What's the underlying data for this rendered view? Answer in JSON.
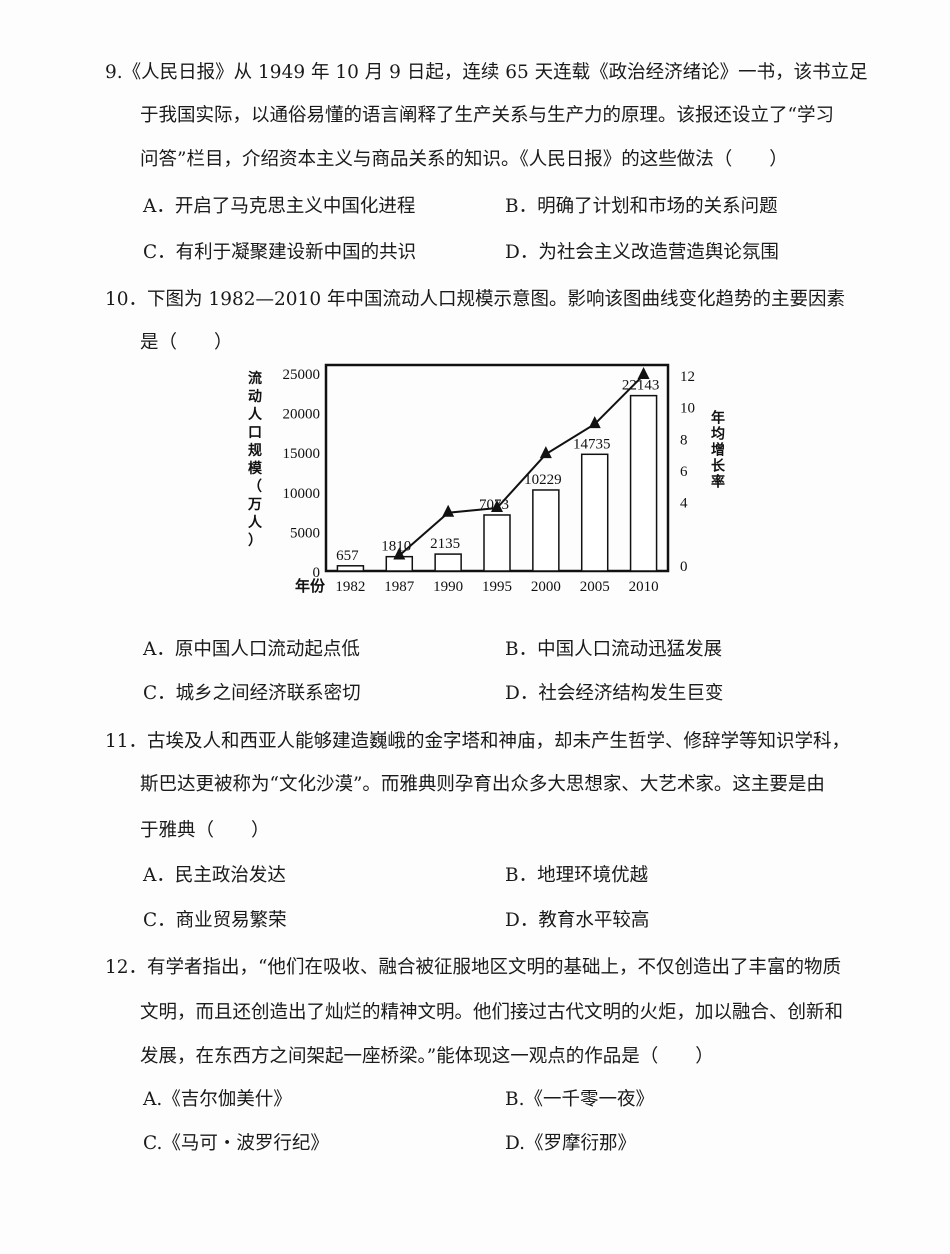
{
  "questions": [
    {
      "lines": [
        "9.《人民日报》从 1949 年 10 月 9 日起，连续 65 天连载《政治经济绪论》一书，该书立足",
        "于我国实际，以通俗易懂的语言阐释了生产关系与生产力的原理。该报还设立了“学习",
        "问答”栏目，介绍资本主义与商品关系的知识。《人民日报》的这些做法（　　）"
      ],
      "options": [
        "A．开启了马克思主义中国化进程",
        "B．明确了计划和市场的关系问题",
        "C．有利于凝聚建设新中国的共识",
        "D．为社会主义改造营造舆论氛围"
      ]
    },
    {
      "lines": [
        "10．下图为 1982—2010 年中国流动人口规模示意图。影响该图曲线变化趋势的主要因素",
        "是（　　）"
      ],
      "options": [
        "A．原中国人口流动起点低",
        "B．中国人口流动迅猛发展",
        "C．城乡之间经济联系密切",
        "D．社会经济结构发生巨变"
      ]
    },
    {
      "lines": [
        "11．古埃及人和西亚人能够建造巍峨的金字塔和神庙，却未产生哲学、修辞学等知识学科，",
        "斯巴达更被称为“文化沙漠”。而雅典则孕育出众多大思想家、大艺术家。这主要是由",
        "于雅典（　　）"
      ],
      "options": [
        "A．民主政治发达",
        "B．地理环境优越",
        "C．商业贸易繁荣",
        "D．教育水平较高"
      ]
    },
    {
      "lines": [
        "12．有学者指出，“他们在吸收、融合被征服地区文明的基础上，不仅创造出了丰富的物质",
        "文明，而且还创造出了灿烂的精神文明。他们接过古代文明的火炬，加以融合、创新和",
        "发展，在东西方之间架起一座桥梁。”能体现这一观点的作品是（　　）"
      ],
      "options": [
        "A.《吉尔伽美什》",
        "B.《一千零一夜》",
        "C.《马可・波罗行纪》",
        "D.《罗摩衍那》"
      ]
    }
  ],
  "chart_data": {
    "type": "bar+line",
    "categories": [
      "1982",
      "1987",
      "1990",
      "1995",
      "2000",
      "2005",
      "2010"
    ],
    "x_prefix": "年份",
    "ylabel": "流动人口规模（万人）",
    "y2label": "年均增长率",
    "ylim": [
      0,
      25000
    ],
    "y_ticks": [
      "0",
      "5000",
      "10000",
      "15000",
      "20000",
      "25000"
    ],
    "y2lim": [
      0,
      12
    ],
    "y2_ticks": [
      "0",
      "4",
      "6",
      "8",
      "10",
      "12"
    ],
    "series": [
      {
        "type": "bar",
        "values": [
          657,
          1810,
          2135,
          7073,
          10229,
          14735,
          22143
        ],
        "labels": [
          "657",
          "1810",
          "2135",
          "7073",
          "10229",
          "14735",
          "22143"
        ]
      },
      {
        "type": "line",
        "marker": "triangle",
        "axis": "right",
        "x": [
          "1987",
          "1990",
          "1995",
          "2000",
          "2005",
          "2010"
        ],
        "values": [
          0.6,
          3.3,
          3.6,
          7.0,
          8.9,
          12.0
        ]
      }
    ]
  }
}
